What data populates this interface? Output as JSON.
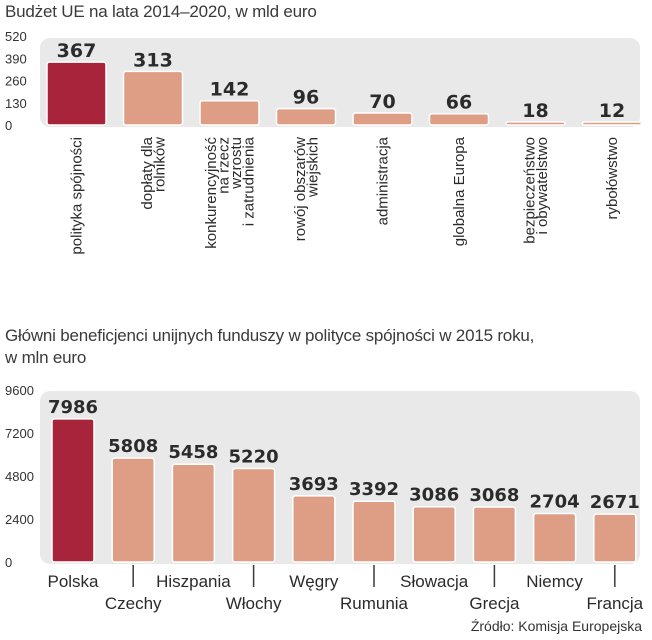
{
  "chart_data": [
    {
      "type": "bar",
      "title": "Budżet UE na lata 2014–2020, w mld euro",
      "categories": [
        [
          "polityka spójności"
        ],
        [
          "dopłaty dla",
          "rolników"
        ],
        [
          "konkurencyjność",
          "na rzecz",
          "wzrostu",
          "i zatrudnienia"
        ],
        [
          "rowój obszarów",
          "wiejskich"
        ],
        [
          "administracja"
        ],
        [
          "globalna Europa"
        ],
        [
          "bezpieczeństwo",
          "i obywatelstwo"
        ],
        [
          "rybołówstwo"
        ]
      ],
      "values": [
        367,
        313,
        142,
        96,
        70,
        66,
        18,
        12
      ],
      "value_labels": [
        "367",
        "313",
        "142",
        "96",
        "70",
        "66",
        "18",
        "12"
      ],
      "yticks": [
        "520",
        "390",
        "260",
        "130",
        "0"
      ],
      "ylim": [
        0,
        520
      ],
      "colors": {
        "highlight": "#a8243a",
        "bar": "#de9e86",
        "band": "#e9e9e9"
      }
    },
    {
      "type": "bar",
      "title": "Główni beneficjenci unijnych funduszy w polityce spójności w 2015 roku,",
      "subtitle": "w mln euro",
      "categories": [
        "Polska",
        "Czechy",
        "Hiszpania",
        "Włochy",
        "Węgry",
        "Rumunia",
        "Słowacja",
        "Grecja",
        "Niemcy",
        "Francja"
      ],
      "values": [
        7986,
        5808,
        5458,
        5220,
        3693,
        3392,
        3086,
        3068,
        2704,
        2671
      ],
      "value_labels": [
        "7986",
        "5808",
        "5458",
        "5220",
        "3693",
        "3392",
        "3086",
        "3068",
        "2704",
        "2671"
      ],
      "yticks": [
        "9600",
        "7200",
        "4800",
        "2400",
        "0"
      ],
      "ylim": [
        0,
        9600
      ],
      "colors": {
        "highlight": "#a8243a",
        "bar": "#de9e86",
        "band": "#e9e9e9"
      }
    }
  ],
  "source": "Źródło: Komisja Europejska"
}
